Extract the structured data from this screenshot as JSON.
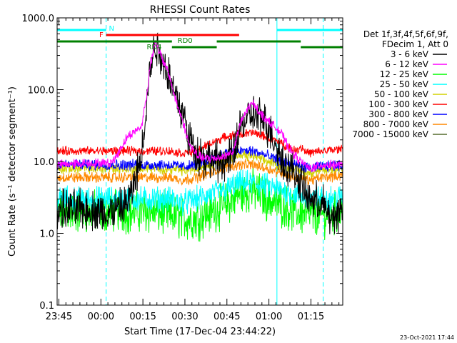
{
  "chart_data": {
    "type": "line",
    "title": "RHESSI Count Rates",
    "xlabel": "Start Time (17-Dec-04 23:44:22)",
    "ylabel": "Count Rate (s⁻¹ detector segment⁻¹)",
    "ylog": true,
    "ylim": [
      0.1,
      1000
    ],
    "y_ticks": [
      "0.1",
      "1.0",
      "10.0",
      "100.0",
      "1000.0"
    ],
    "x_ticks": [
      "23:45",
      "00:00",
      "00:15",
      "00:30",
      "00:45",
      "01:00",
      "01:15"
    ],
    "x_unit": "minutes after 23:44:22",
    "xlim": [
      0,
      102
    ],
    "legend_header": [
      "Det 1f,3f,4f,5f,6f,9f,",
      "FDecim 1, Att 0"
    ],
    "series": [
      {
        "name": "3 - 6 keV",
        "color": "#000000",
        "x": [
          0,
          10,
          15,
          18,
          20,
          21,
          23,
          25,
          27,
          30,
          32,
          33,
          35,
          37,
          40,
          42,
          45,
          47,
          50,
          53,
          56,
          60,
          63,
          65,
          70,
          73,
          76,
          78,
          80,
          83,
          85,
          87,
          90,
          95,
          98,
          102
        ],
        "y": [
          2.1,
          2.2,
          2.0,
          1.8,
          2.2,
          2.0,
          2.3,
          2.6,
          4.0,
          11,
          70,
          170,
          450,
          300,
          160,
          90,
          45,
          22,
          13,
          11,
          10,
          10,
          12,
          30,
          45,
          40,
          28,
          18,
          11,
          8,
          7,
          5,
          3,
          2.5,
          1.5,
          2.4
        ]
      },
      {
        "name": "6 - 12 keV",
        "color": "#ff00ff",
        "x": [
          0,
          10,
          15,
          18,
          20,
          23,
          25,
          27,
          30,
          32,
          33,
          35,
          37,
          40,
          42,
          45,
          47,
          50,
          53,
          56,
          60,
          63,
          65,
          68,
          70,
          73,
          76,
          78,
          80,
          83,
          85,
          87,
          90,
          95,
          98,
          102
        ],
        "y": [
          9,
          9.5,
          9.5,
          9.5,
          10,
          16,
          22,
          25,
          30,
          80,
          190,
          480,
          300,
          160,
          80,
          35,
          18,
          12,
          11,
          11,
          12,
          14,
          30,
          55,
          65,
          45,
          35,
          30,
          25,
          15,
          12,
          10,
          8,
          9,
          9,
          9
        ]
      },
      {
        "name": "12 - 25 keV",
        "color": "#00ff00",
        "x": [
          0,
          10,
          18,
          20,
          25,
          30,
          35,
          40,
          45,
          50,
          55,
          60,
          65,
          70,
          75,
          80,
          85,
          90,
          95,
          102
        ],
        "y": [
          2,
          2,
          2,
          2.1,
          2,
          2,
          2,
          1.8,
          1.6,
          1.6,
          2,
          2.5,
          3.5,
          4,
          3,
          2.5,
          2,
          1.8,
          1.8,
          2
        ]
      },
      {
        "name": "25 - 50 keV",
        "color": "#00ffff",
        "x": [
          0,
          10,
          20,
          30,
          40,
          45,
          50,
          55,
          60,
          65,
          70,
          75,
          80,
          85,
          90,
          95,
          102
        ],
        "y": [
          3,
          3,
          3,
          3,
          3,
          2.7,
          3,
          3.5,
          4,
          5,
          5,
          4.5,
          4,
          3.5,
          3,
          3,
          3.2
        ]
      },
      {
        "name": "50 - 100 keV",
        "color": "#d2d200",
        "x": [
          0,
          10,
          20,
          30,
          40,
          45,
          50,
          55,
          60,
          65,
          70,
          75,
          80,
          85,
          90,
          95,
          102
        ],
        "y": [
          8,
          8,
          8,
          8,
          8,
          7.5,
          8,
          9.5,
          11,
          12,
          12,
          10,
          9,
          8,
          7,
          7.5,
          8
        ]
      },
      {
        "name": "100 - 300 keV",
        "color": "#ff0000",
        "x": [
          0,
          10,
          20,
          30,
          40,
          45,
          50,
          55,
          60,
          65,
          70,
          75,
          80,
          85,
          87,
          90,
          95,
          102
        ],
        "y": [
          14,
          14,
          14,
          14,
          14,
          13,
          14,
          18,
          22,
          24,
          25,
          22,
          18,
          14,
          16,
          13,
          14,
          15
        ]
      },
      {
        "name": "300 - 800 keV",
        "color": "#0000ff",
        "x": [
          0,
          10,
          20,
          30,
          40,
          45,
          50,
          55,
          60,
          65,
          70,
          75,
          80,
          85,
          90,
          95,
          102
        ],
        "y": [
          9,
          9,
          9,
          9,
          9,
          8.5,
          9,
          11,
          13,
          14,
          14,
          12,
          10,
          9,
          8,
          8.5,
          9
        ]
      },
      {
        "name": "800 - 7000 keV",
        "color": "#ff8800",
        "x": [
          0,
          10,
          20,
          30,
          40,
          45,
          50,
          55,
          60,
          65,
          70,
          75,
          80,
          85,
          90,
          95,
          102
        ],
        "y": [
          6,
          6,
          6,
          6,
          6,
          5.5,
          6,
          7,
          8.5,
          9,
          9,
          8,
          7,
          6,
          5.5,
          6,
          6.5
        ]
      },
      {
        "name": "7000 - 15000 keV",
        "color": "#556b2f",
        "x": [],
        "y": []
      }
    ],
    "annotations": [
      {
        "text": "N",
        "color": "#00ffff"
      },
      {
        "text": "F",
        "color": "#ff0000"
      },
      {
        "text": "RD0",
        "color": "#008000"
      },
      {
        "text": "RD4",
        "color": "#008000"
      }
    ],
    "intervals": {
      "night": [
        [
          0,
          17.5
        ],
        [
          78.5,
          102
        ]
      ],
      "flare": [
        [
          17.5,
          65
        ]
      ],
      "rd0": [
        [
          0,
          41
        ],
        [
          57,
          87
        ]
      ],
      "rd4": [
        [
          41,
          57
        ],
        [
          87,
          102
        ]
      ]
    },
    "vertical_lines": {
      "solid": [
        0,
        78.5
      ],
      "dashed": [
        17.5,
        95
      ]
    }
  },
  "footer": {
    "timestamp": "23-Oct-2021 17:44"
  }
}
